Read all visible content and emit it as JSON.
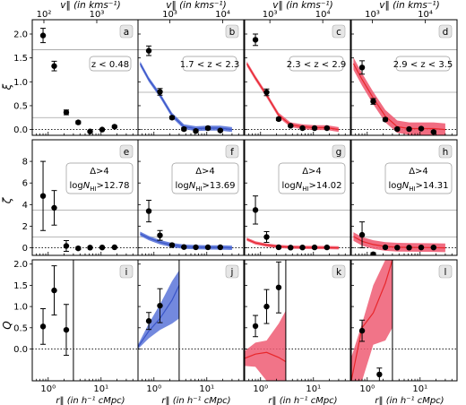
{
  "figure": {
    "top_axis_label": "v‖ (in kms⁻¹)",
    "bottom_axis_label": "r‖ (in h⁻¹ cMpc)",
    "row_ylabels": [
      "ξ",
      "ζ",
      "Q"
    ]
  },
  "colors": {
    "blue": "#3a55c8",
    "blue_fill": "#5a74d8",
    "red": "#e8262b",
    "pink": "#ef5c73",
    "grid": "#a0a0a0"
  },
  "chart_data": [
    {
      "id": "a",
      "type": "scatter",
      "row": 0,
      "col": 0,
      "panel_label": "a",
      "annotations": [
        "z < 0.48"
      ],
      "ylabel": "ξ",
      "yticks": [
        0.0,
        0.5,
        1.0,
        1.5,
        2.0
      ],
      "ylim": [
        -0.12,
        2.3
      ],
      "xscale": "log",
      "xlim": [
        0.5,
        50
      ],
      "reference_lines": [
        1.67,
        0.25
      ],
      "zero_line": true,
      "points": [
        {
          "x": 0.8,
          "y": 1.97,
          "err": 0.15
        },
        {
          "x": 1.3,
          "y": 1.33,
          "err": 0.1
        },
        {
          "x": 2.2,
          "y": 0.36,
          "err": 0.05
        },
        {
          "x": 3.7,
          "y": 0.15,
          "err": 0.03
        },
        {
          "x": 6.2,
          "y": -0.04,
          "err": 0.02
        },
        {
          "x": 10.5,
          "y": 0.0,
          "err": 0.02
        },
        {
          "x": 18,
          "y": 0.06,
          "err": 0.02
        }
      ]
    },
    {
      "id": "b",
      "type": "scatter",
      "row": 0,
      "col": 1,
      "panel_label": "b",
      "annotations": [
        "1.7 < z < 2.3"
      ],
      "ylim": [
        -0.12,
        2.3
      ],
      "xscale": "log",
      "xlim": [
        0.5,
        50
      ],
      "reference_lines": [
        1.67,
        0.78,
        0.25
      ],
      "zero_line": true,
      "model": {
        "color": "blue",
        "x": [
          0.55,
          0.8,
          1.3,
          2.2,
          3.7,
          6.2,
          10.5,
          18,
          30
        ],
        "y": [
          1.38,
          1.05,
          0.72,
          0.3,
          0.06,
          0.02,
          0.03,
          0.03,
          0.0
        ],
        "band": 0.05
      },
      "points": [
        {
          "x": 0.8,
          "y": 1.65,
          "err": 0.1
        },
        {
          "x": 1.3,
          "y": 0.79,
          "err": 0.07
        },
        {
          "x": 2.2,
          "y": 0.25,
          "err": 0.03
        },
        {
          "x": 3.7,
          "y": 0.01,
          "err": 0.03
        },
        {
          "x": 6.2,
          "y": -0.03,
          "err": 0.03
        },
        {
          "x": 10.5,
          "y": 0.03,
          "err": 0.03
        },
        {
          "x": 18,
          "y": -0.02,
          "err": 0.02
        }
      ]
    },
    {
      "id": "c",
      "type": "scatter",
      "row": 0,
      "col": 2,
      "panel_label": "c",
      "annotations": [
        "2.3 < z < 2.9"
      ],
      "ylim": [
        -0.12,
        2.3
      ],
      "xscale": "log",
      "xlim": [
        0.5,
        50
      ],
      "reference_lines": [
        1.67,
        0.78,
        0.25
      ],
      "zero_line": true,
      "model": {
        "color": "red",
        "x": [
          0.55,
          0.8,
          1.3,
          2.2,
          3.7,
          6.2,
          10.5,
          18,
          30
        ],
        "y": [
          1.38,
          1.08,
          0.72,
          0.3,
          0.1,
          0.06,
          0.04,
          0.04,
          0.0
        ],
        "band": 0.05
      },
      "points": [
        {
          "x": 0.8,
          "y": 1.88,
          "err": 0.12
        },
        {
          "x": 1.3,
          "y": 0.78,
          "err": 0.07
        },
        {
          "x": 2.2,
          "y": 0.22,
          "err": 0.03
        },
        {
          "x": 3.7,
          "y": 0.08,
          "err": 0.02
        },
        {
          "x": 6.2,
          "y": 0.03,
          "err": 0.02
        },
        {
          "x": 10.5,
          "y": 0.03,
          "err": 0.02
        },
        {
          "x": 18,
          "y": 0.03,
          "err": 0.02
        }
      ]
    },
    {
      "id": "d",
      "type": "scatter",
      "row": 0,
      "col": 3,
      "panel_label": "d",
      "annotations": [
        "2.9 < z < 3.5"
      ],
      "ylim": [
        -0.12,
        2.3
      ],
      "xscale": "log",
      "xlim": [
        0.5,
        50
      ],
      "reference_lines": [
        1.67,
        0.78,
        0.25
      ],
      "zero_line": true,
      "model": {
        "color": "red",
        "x": [
          0.55,
          0.8,
          1.3,
          2.2,
          3.7,
          6.2,
          10.5,
          18,
          30
        ],
        "y": [
          1.38,
          1.05,
          0.66,
          0.28,
          0.06,
          0.02,
          0.02,
          0.02,
          0.0
        ],
        "band": 0.13
      },
      "points": [
        {
          "x": 0.8,
          "y": 1.3,
          "err": 0.14
        },
        {
          "x": 1.3,
          "y": 0.59,
          "err": 0.06
        },
        {
          "x": 2.2,
          "y": 0.21,
          "err": 0.03
        },
        {
          "x": 3.7,
          "y": 0.01,
          "err": 0.02
        },
        {
          "x": 6.2,
          "y": 0.01,
          "err": 0.02
        },
        {
          "x": 10.5,
          "y": 0.02,
          "err": 0.02
        },
        {
          "x": 18,
          "y": -0.05,
          "err": 0.02
        }
      ]
    },
    {
      "id": "e",
      "type": "scatter",
      "row": 1,
      "col": 0,
      "panel_label": "e",
      "annotations": [
        "Δ>4",
        "logN_HI>12.78"
      ],
      "ylabel": "ζ",
      "yticks": [
        0,
        2,
        4,
        6,
        8
      ],
      "ylim": [
        -0.7,
        10
      ],
      "xscale": "log",
      "xlim": [
        0.5,
        50
      ],
      "reference_lines": [
        3.5,
        1.0
      ],
      "zero_line": true,
      "points": [
        {
          "x": 0.8,
          "y": 4.8,
          "err": 3.2
        },
        {
          "x": 1.3,
          "y": 3.7,
          "err": 1.6
        },
        {
          "x": 2.2,
          "y": 0.17,
          "err": 0.5
        },
        {
          "x": 3.7,
          "y": -0.05,
          "err": 0.12
        },
        {
          "x": 6.2,
          "y": 0.02,
          "err": 0.05
        },
        {
          "x": 10.5,
          "y": 0.03,
          "err": 0.05
        },
        {
          "x": 18,
          "y": 0.05,
          "err": 0.05
        }
      ]
    },
    {
      "id": "f",
      "type": "scatter",
      "row": 1,
      "col": 1,
      "panel_label": "f",
      "annotations": [
        "Δ>4",
        "logN_HI>13.69"
      ],
      "ylim": [
        -0.7,
        10
      ],
      "xscale": "log",
      "xlim": [
        0.5,
        50
      ],
      "reference_lines": [
        3.5,
        1.0
      ],
      "zero_line": true,
      "model": {
        "color": "blue",
        "x": [
          0.55,
          0.8,
          1.3,
          2.2,
          3.7,
          6.2,
          10.5,
          18,
          30
        ],
        "y": [
          1.3,
          0.9,
          0.52,
          0.25,
          0.1,
          0.06,
          0.04,
          0.03,
          0.0
        ],
        "band": 0.2
      },
      "points": [
        {
          "x": 0.8,
          "y": 3.4,
          "err": 1.0
        },
        {
          "x": 1.3,
          "y": 1.15,
          "err": 0.45
        },
        {
          "x": 2.2,
          "y": 0.25,
          "err": 0.1
        },
        {
          "x": 3.7,
          "y": 0.07,
          "err": 0.05
        },
        {
          "x": 6.2,
          "y": 0.05,
          "err": 0.04
        },
        {
          "x": 10.5,
          "y": 0.05,
          "err": 0.04
        },
        {
          "x": 18,
          "y": 0.05,
          "err": 0.04
        }
      ]
    },
    {
      "id": "g",
      "type": "scatter",
      "row": 1,
      "col": 2,
      "panel_label": "g",
      "annotations": [
        "Δ>4",
        "logN_HI>14.02"
      ],
      "ylim": [
        -0.7,
        10
      ],
      "xscale": "log",
      "xlim": [
        0.5,
        50
      ],
      "reference_lines": [
        3.5,
        1.0
      ],
      "zero_line": true,
      "model": {
        "color": "red",
        "x": [
          0.55,
          0.8,
          1.3,
          2.2,
          3.7,
          6.2,
          10.5,
          18,
          30
        ],
        "y": [
          0.8,
          0.45,
          0.25,
          0.12,
          0.06,
          0.04,
          0.03,
          0.02,
          0.0
        ],
        "band": 0.15
      },
      "points": [
        {
          "x": 0.8,
          "y": 3.5,
          "err": 1.3
        },
        {
          "x": 1.3,
          "y": 1.0,
          "err": 0.5
        },
        {
          "x": 2.2,
          "y": 0.05,
          "err": 0.1
        },
        {
          "x": 3.7,
          "y": 0.02,
          "err": 0.05
        },
        {
          "x": 6.2,
          "y": 0.03,
          "err": 0.04
        },
        {
          "x": 10.5,
          "y": 0.04,
          "err": 0.04
        },
        {
          "x": 18,
          "y": 0.04,
          "err": 0.04
        }
      ]
    },
    {
      "id": "h",
      "type": "scatter",
      "row": 1,
      "col": 3,
      "panel_label": "h",
      "annotations": [
        "Δ>4",
        "logN_HI>14.31"
      ],
      "ylim": [
        -0.7,
        10
      ],
      "xscale": "log",
      "xlim": [
        0.5,
        50
      ],
      "reference_lines": [
        3.5,
        1.0
      ],
      "zero_line": true,
      "model": {
        "color": "red",
        "x": [
          0.55,
          0.8,
          1.3,
          2.2,
          3.7,
          6.2,
          10.5,
          18,
          30
        ],
        "y": [
          1.05,
          0.6,
          0.3,
          0.12,
          0.06,
          0.04,
          0.03,
          0.02,
          0.0
        ],
        "band": 0.4
      },
      "points": [
        {
          "x": 0.8,
          "y": 1.2,
          "err": 1.2
        },
        {
          "x": 1.3,
          "y": -0.6,
          "err": 0.15
        },
        {
          "x": 2.2,
          "y": 0.05,
          "err": 0.1
        },
        {
          "x": 3.7,
          "y": 0.02,
          "err": 0.05
        },
        {
          "x": 6.2,
          "y": 0.02,
          "err": 0.04
        },
        {
          "x": 10.5,
          "y": 0.03,
          "err": 0.04
        },
        {
          "x": 18,
          "y": 0.03,
          "err": 0.04
        }
      ]
    },
    {
      "id": "i",
      "type": "scatter",
      "row": 2,
      "col": 0,
      "panel_label": "i",
      "ylabel": "Q",
      "yticks": [
        0.0,
        0.5,
        1.0,
        1.5,
        2.0
      ],
      "ylim": [
        -0.75,
        2.1
      ],
      "xscale": "log",
      "xlim": [
        0.5,
        50
      ],
      "reference_lines": [],
      "zero_line": true,
      "points": [
        {
          "x": 0.8,
          "y": 0.53,
          "err": 0.42
        },
        {
          "x": 1.3,
          "y": 1.38,
          "err": 0.58
        },
        {
          "x": 2.2,
          "y": 0.45,
          "err": 0.6
        }
      ],
      "vlines": [
        3.0
      ]
    },
    {
      "id": "j",
      "type": "scatter",
      "row": 2,
      "col": 1,
      "panel_label": "j",
      "ylim": [
        -0.75,
        2.1
      ],
      "xscale": "log",
      "xlim": [
        0.5,
        50
      ],
      "reference_lines": [],
      "zero_line": true,
      "model": {
        "color": "blue",
        "x": [
          0.5,
          0.8,
          1.3,
          2.2,
          3.0
        ],
        "y": [
          0.05,
          0.42,
          0.72,
          1.15,
          1.5
        ],
        "lower": [
          0.0,
          0.25,
          0.45,
          0.6,
          0.72
        ],
        "upper": [
          0.1,
          0.6,
          1.05,
          1.6,
          1.85
        ]
      },
      "points": [
        {
          "x": 0.8,
          "y": 0.66,
          "err": 0.2
        },
        {
          "x": 1.3,
          "y": 1.02,
          "err": 0.4
        }
      ],
      "vlines": [
        3.0
      ]
    },
    {
      "id": "k",
      "type": "scatter",
      "row": 2,
      "col": 2,
      "panel_label": "k",
      "ylim": [
        -0.75,
        2.1
      ],
      "xscale": "log",
      "xlim": [
        0.5,
        50
      ],
      "reference_lines": [],
      "zero_line": true,
      "model": {
        "color": "red",
        "x": [
          0.5,
          0.8,
          1.3,
          2.2,
          3.0
        ],
        "y": [
          -0.22,
          -0.12,
          -0.08,
          -0.2,
          -0.3
        ],
        "lower": [
          -0.4,
          -0.42,
          -0.75,
          -0.75,
          -0.75
        ],
        "upper": [
          -0.05,
          0.15,
          0.2,
          0.6,
          0.9
        ]
      },
      "points": [
        {
          "x": 0.8,
          "y": 0.54,
          "err": 0.25
        },
        {
          "x": 1.3,
          "y": 1.0,
          "err": 0.4
        },
        {
          "x": 2.2,
          "y": 1.45,
          "err": 0.6
        }
      ],
      "vlines": [
        3.0
      ]
    },
    {
      "id": "l",
      "type": "scatter",
      "row": 2,
      "col": 3,
      "panel_label": "l",
      "ylim": [
        -0.75,
        2.1
      ],
      "xscale": "log",
      "xlim": [
        0.5,
        50
      ],
      "reference_lines": [],
      "zero_line": true,
      "model": {
        "color": "red",
        "x": [
          0.5,
          0.8,
          1.3,
          2.2,
          3.0
        ],
        "y": [
          -0.75,
          0.5,
          0.85,
          1.55,
          2.1
        ],
        "lower": [
          -0.75,
          -0.75,
          0.1,
          0.2,
          0.5
        ],
        "upper": [
          -0.2,
          0.6,
          1.5,
          2.1,
          2.1
        ]
      },
      "points": [
        {
          "x": 0.8,
          "y": 0.43,
          "err": 0.25
        },
        {
          "x": 1.7,
          "y": -0.6,
          "err": 0.15
        }
      ],
      "vlines": [
        3.0
      ]
    }
  ],
  "top_axes": [
    {
      "col": 0,
      "ticks": [
        {
          "label": "10²",
          "x": 0.83
        },
        {
          "label": "10³",
          "x": 8.3
        }
      ]
    },
    {
      "col": 1,
      "ticks": [
        {
          "label": "10³",
          "x": 2.0
        },
        {
          "label": "10⁴",
          "x": 20
        }
      ]
    },
    {
      "col": 2,
      "ticks": [
        {
          "label": "10³",
          "x": 1.5
        },
        {
          "label": "10⁴",
          "x": 15
        }
      ]
    },
    {
      "col": 3,
      "ticks": [
        {
          "label": "10³",
          "x": 1.25
        },
        {
          "label": "10⁴",
          "x": 12.5
        }
      ]
    }
  ],
  "bottom_ticks": [
    {
      "label": "10⁰",
      "x": 1
    },
    {
      "label": "10¹",
      "x": 10
    }
  ]
}
